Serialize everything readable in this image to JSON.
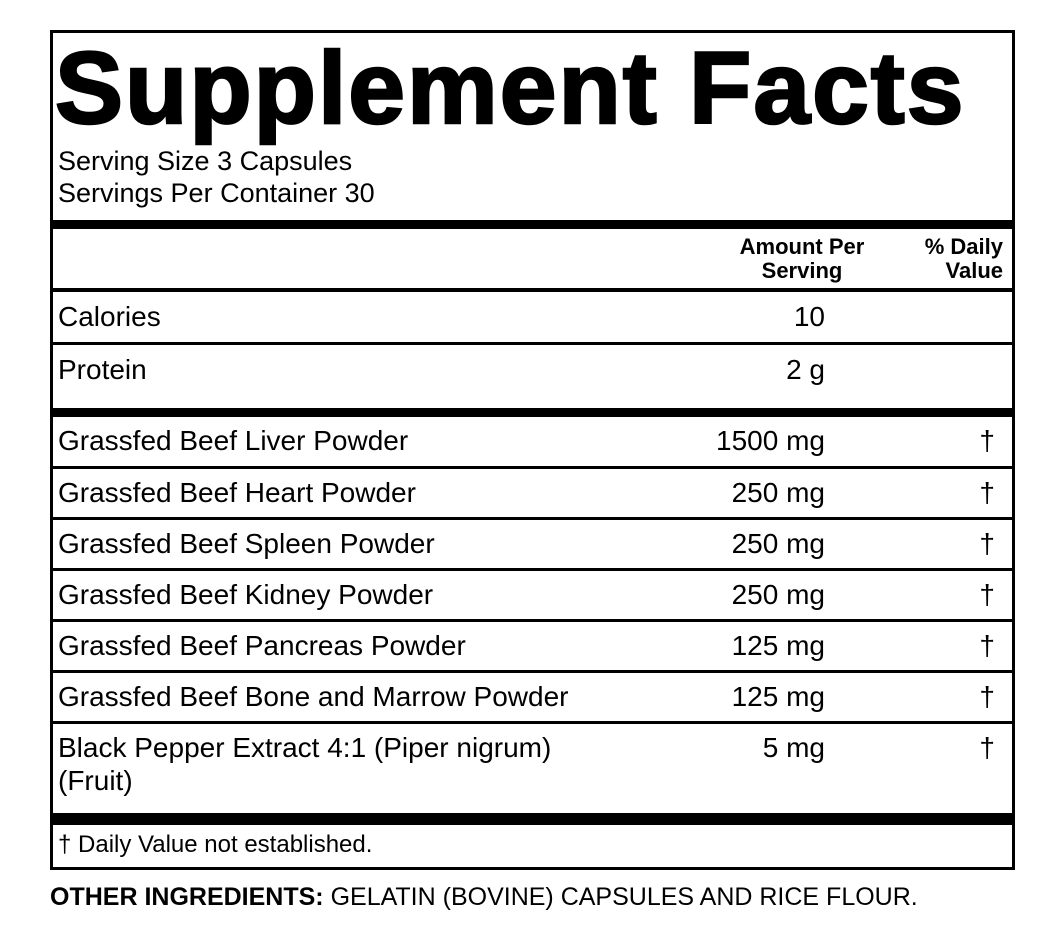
{
  "label": {
    "title": "Supplement Facts",
    "serving_size": "Serving Size 3 Capsules",
    "servings_per_container": "Servings Per Container 30",
    "columns": {
      "amount_header_line1": "Amount Per",
      "amount_header_line2": "Serving",
      "dv_header_line1": "% Daily",
      "dv_header_line2": "Value"
    },
    "nutrients": [
      {
        "name": "Calories",
        "amount": "10",
        "dv": ""
      },
      {
        "name": "Protein",
        "amount": "2 g",
        "dv": ""
      }
    ],
    "ingredients": [
      {
        "name": "Grassfed Beef Liver Powder",
        "amount": "1500 mg",
        "dv": "†"
      },
      {
        "name": "Grassfed Beef Heart Powder",
        "amount": "250 mg",
        "dv": "†"
      },
      {
        "name": "Grassfed Beef Spleen Powder",
        "amount": "250 mg",
        "dv": "†"
      },
      {
        "name": "Grassfed Beef Kidney Powder",
        "amount": "250 mg",
        "dv": "†"
      },
      {
        "name": "Grassfed Beef Pancreas Powder",
        "amount": "125 mg",
        "dv": "†"
      },
      {
        "name": "Grassfed Beef Bone and Marrow Powder",
        "amount": "125 mg",
        "dv": "†"
      },
      {
        "name": "Black Pepper Extract 4:1 (Piper nigrum)",
        "name_line2": "(Fruit)",
        "amount": "5 mg",
        "dv": "†"
      }
    ],
    "footnote": "† Daily Value not established.",
    "other_ingredients_label": "OTHER INGREDIENTS:",
    "other_ingredients_text": " GELATIN (BOVINE) CAPSULES AND RICE FLOUR.",
    "colors": {
      "text": "#000000",
      "background": "#ffffff",
      "border": "#000000"
    }
  }
}
